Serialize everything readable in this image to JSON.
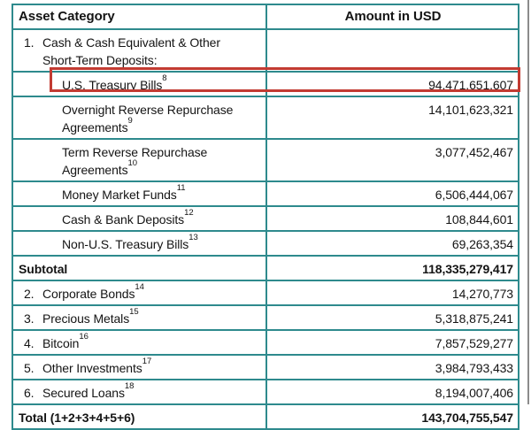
{
  "colors": {
    "table_border_teal": "#2E8A8D",
    "highlight_box_red": "#C23B32",
    "text": "#141414",
    "screenshot_edge_gray": "#8C8C8C",
    "background": "#FFFFFF"
  },
  "table": {
    "columns": [
      "Asset Category",
      "Amount in USD"
    ],
    "rows": [
      {
        "num": "1.",
        "label": "Cash & Cash Equivalent & Other\nShort-Term Deposits:",
        "amount": ""
      },
      {
        "label": "U.S. Treasury Bills",
        "sup": "8",
        "amount": "94,471,651,607",
        "highlighted": true
      },
      {
        "label": "Overnight Reverse Repurchase\nAgreements",
        "sup": "9",
        "amount": "14,101,623,321"
      },
      {
        "label": "Term Reverse Repurchase\nAgreements",
        "sup": "10",
        "amount": "3,077,452,467"
      },
      {
        "label": "Money Market Funds",
        "sup": "11",
        "amount": "6,506,444,067"
      },
      {
        "label": "Cash & Bank Deposits",
        "sup": "12",
        "amount": "108,844,601"
      },
      {
        "label": "Non-U.S. Treasury Bills",
        "sup": "13",
        "amount": "69,263,354"
      },
      {
        "label": "Subtotal",
        "amount": "118,335,279,417",
        "emphasis": true
      },
      {
        "num": "2.",
        "label": "Corporate Bonds",
        "sup": "14",
        "amount": "14,270,773"
      },
      {
        "num": "3.",
        "label": "Precious Metals",
        "sup": "15",
        "amount": "5,318,875,241"
      },
      {
        "num": "4.",
        "label": "Bitcoin",
        "sup": "16",
        "amount": "7,857,529,277"
      },
      {
        "num": "5.",
        "label": "Other Investments",
        "sup": "17",
        "amount": "3,984,793,433"
      },
      {
        "num": "6.",
        "label": "Secured Loans",
        "sup": "18",
        "amount": "8,194,007,406"
      },
      {
        "label": "Total (1+2+3+4+5+6)",
        "amount": "143,704,755,547",
        "emphasis": true
      }
    ]
  },
  "annotation": {
    "type": "red-highlight-box",
    "target_row": "U.S. Treasury Bills"
  }
}
